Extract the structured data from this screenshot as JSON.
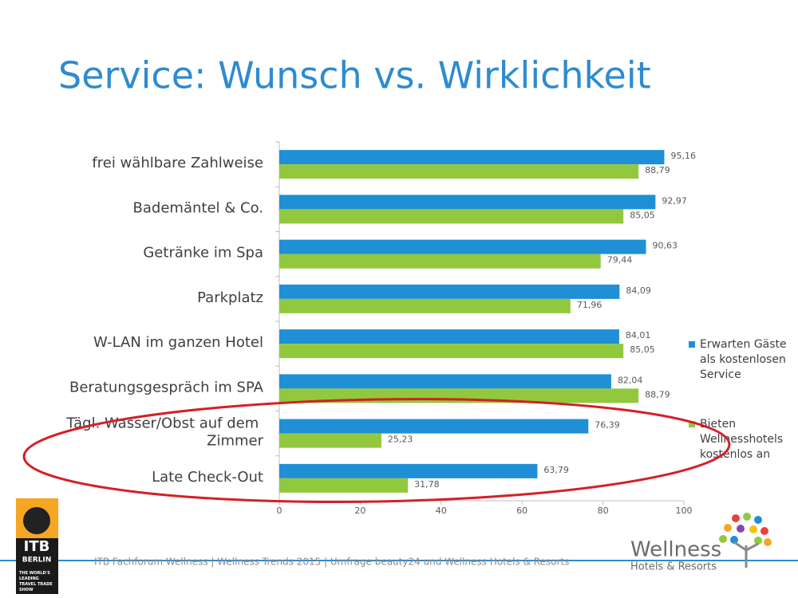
{
  "chart_data": {
    "type": "barh",
    "title": "Service: Wunsch vs. Wirklichkeit",
    "categories": [
      "frei wählbare Zahlweise",
      "Bademäntel & Co.",
      "Getränke im Spa",
      "Parkplatz",
      "W-LAN im ganzen Hotel",
      "Beratungsgespräch im SPA",
      "Tägl. Wasser/Obst auf dem Zimmer",
      "Late Check-Out"
    ],
    "series": [
      {
        "name": "Erwarten Gäste als kostenlosen Service",
        "color": "#1f8fd6",
        "values": [
          95.16,
          92.97,
          90.63,
          84.09,
          84.01,
          82.04,
          76.39,
          63.79
        ],
        "value_labels": [
          "95,16",
          "92,97",
          "90,63",
          "84,09",
          "84,01",
          "82,04",
          "76,39",
          "63,79"
        ]
      },
      {
        "name": "Bieten Wellnesshotels kostenlos an",
        "color": "#92c83e",
        "values": [
          88.79,
          85.05,
          79.44,
          71.96,
          85.05,
          88.79,
          25.23,
          31.78
        ],
        "value_labels": [
          "88,79",
          "85,05",
          "79,44",
          "71,96",
          "85,05",
          "88,79",
          "25,23",
          "31,78"
        ]
      }
    ],
    "xlim": [
      0,
      100
    ],
    "xticks": [
      0,
      20,
      40,
      60,
      80,
      100
    ],
    "legend": "right"
  },
  "footer": "ITB Fachforum Wellness | Wellness Trends 2015 | Umfrage beauty24 und Wellness Hotels & Resorts",
  "itb_logo": {
    "name": "ITB",
    "city": "BERLIN",
    "tagline": "THE WORLD'S LEADING TRAVEL TRADE SHOW"
  },
  "wellness_logo": {
    "name": "Wellness",
    "sub": "Hotels & Resorts"
  }
}
